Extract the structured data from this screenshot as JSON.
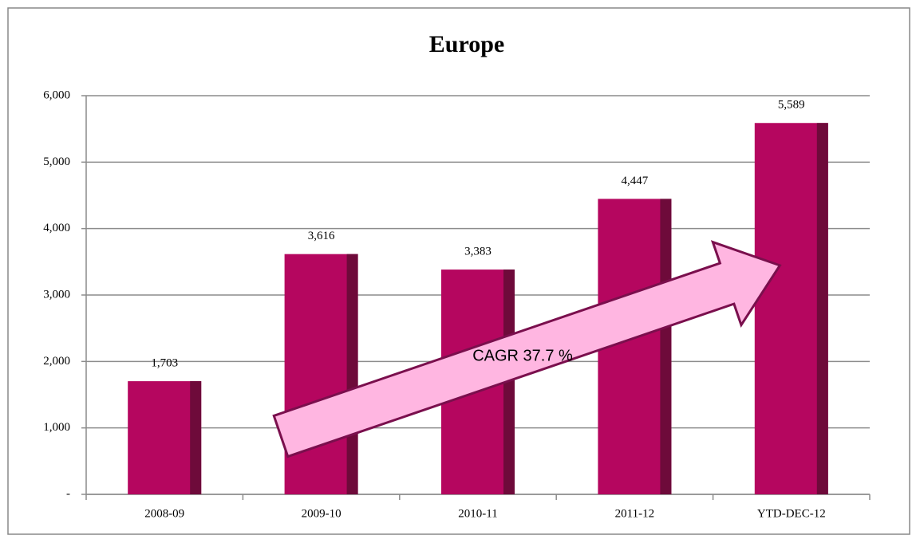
{
  "chart_data": {
    "type": "bar",
    "title": "Europe",
    "categories": [
      "2008-09",
      "2009-10",
      "2010-11",
      "2011-12",
      "YTD-DEC-12"
    ],
    "values": [
      1703,
      3616,
      3383,
      4447,
      5589
    ],
    "value_labels": [
      "1,703",
      "3,616",
      "3,383",
      "4,447",
      "5,589"
    ],
    "color": "#b5065f",
    "shade_color": "#6e0a3a",
    "ylim": [
      0,
      6000
    ],
    "yticks": [
      {
        "value": 0,
        "label": "-"
      },
      {
        "value": 1000,
        "label": "1,000"
      },
      {
        "value": 2000,
        "label": "2,000"
      },
      {
        "value": 3000,
        "label": "3,000"
      },
      {
        "value": 4000,
        "label": "4,000"
      },
      {
        "value": 5000,
        "label": "5,000"
      },
      {
        "value": 6000,
        "label": "6,000"
      }
    ],
    "grid": true,
    "annotation": "CAGR 37.7 %"
  }
}
